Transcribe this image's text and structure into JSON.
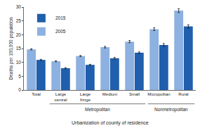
{
  "chart_data": {
    "type": "bar",
    "x_label": "Urbanization of county of residence",
    "y_label": "Deaths per 100,000 population",
    "categories": [
      "Total",
      "Large central",
      "Large fringe",
      "Medium",
      "Small",
      "Micropolitan",
      "Rural"
    ],
    "series": [
      {
        "name": "2005",
        "color": "#8db1e0",
        "values": [
          14.7,
          10.4,
          12.3,
          15.5,
          17.5,
          22.0,
          28.7
        ],
        "error": [
          0.2,
          0.2,
          0.2,
          0.3,
          0.4,
          0.5,
          0.7
        ]
      },
      {
        "name": "2015",
        "color": "#1f5fad",
        "values": [
          10.9,
          7.9,
          9.1,
          11.5,
          13.5,
          16.3,
          23.0
        ],
        "error": [
          0.2,
          0.2,
          0.2,
          0.3,
          0.3,
          0.5,
          0.6
        ]
      }
    ],
    "groups": [
      {
        "label": "Metropolitan",
        "categories": [
          "Large central",
          "Large fringe",
          "Medium",
          "Small"
        ]
      },
      {
        "label": "Nonmetropolitan",
        "categories": [
          "Micropolitan",
          "Rural"
        ]
      }
    ],
    "ylim": [
      0,
      30
    ],
    "yticks": [
      0,
      5,
      10,
      15,
      20,
      25,
      30
    ],
    "grid": false,
    "legend": "top left"
  }
}
